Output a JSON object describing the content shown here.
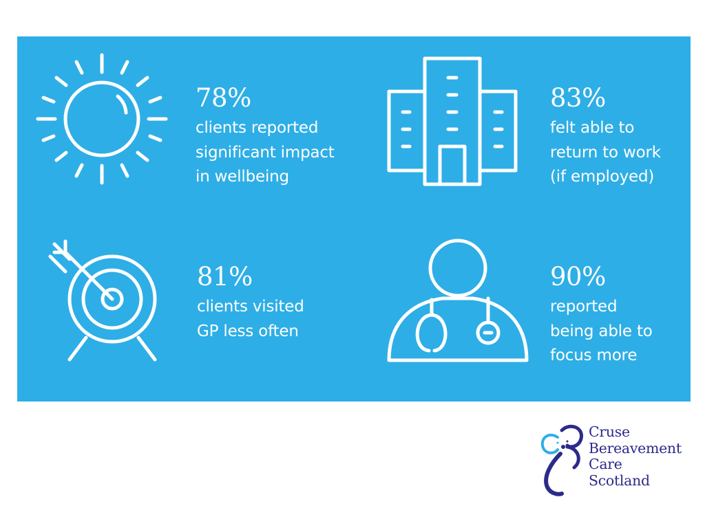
{
  "panel": {
    "background": "#2eaee6"
  },
  "stats": [
    {
      "icon": "sun-icon",
      "percent": "78%",
      "lines": [
        "clients reported",
        "significant impact",
        "in wellbeing"
      ]
    },
    {
      "icon": "office-building-icon",
      "percent": "83%",
      "lines": [
        "felt able to",
        "return to work",
        "(if employed)"
      ]
    },
    {
      "icon": "target-arrow-icon",
      "percent": "81%",
      "lines": [
        "clients visited",
        "GP less often"
      ]
    },
    {
      "icon": "doctor-stethoscope-icon",
      "percent": "90%",
      "lines": [
        "reported",
        "being able to",
        "focus more"
      ]
    }
  ],
  "logo": {
    "lines": [
      "Cruse",
      "Bereavement",
      "Care",
      "Scotland"
    ],
    "text_color": "#2c2a8a",
    "accent_color": "#2eaee6"
  }
}
